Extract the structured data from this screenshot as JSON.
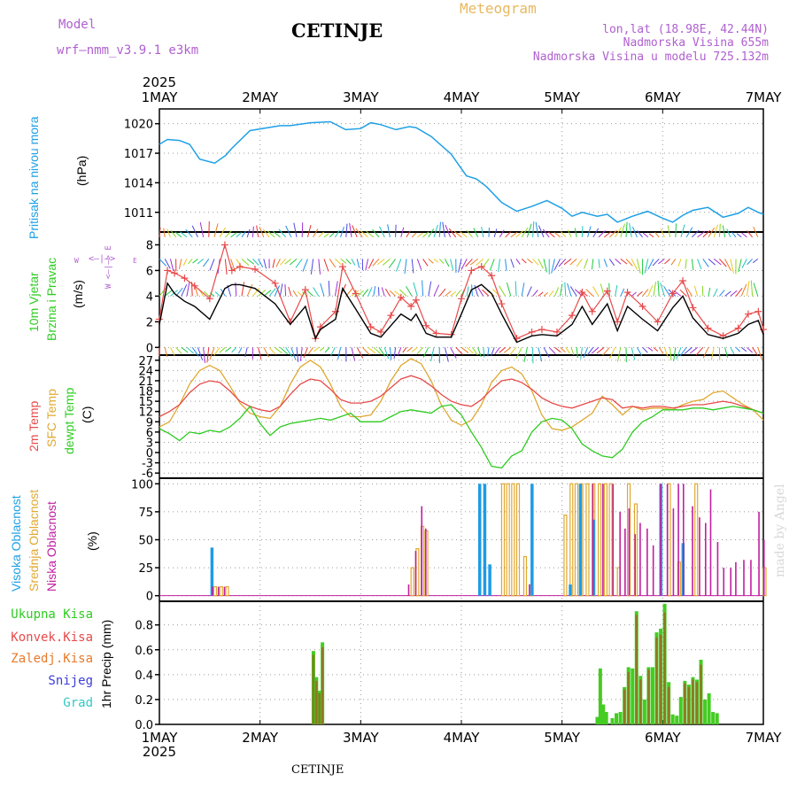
{
  "header": {
    "model_label": "Model",
    "model_name": "wrf—nmm_v3.9.1  e3km",
    "station": "CETINJE",
    "product": "Meteogram",
    "lonlat": "lon,lat (18.98E, 42.44N)",
    "elevation": "Nadmorska Visina 655m",
    "model_elevation": "Nadmorska Visina u modelu 725.132m",
    "watermark": "made by Angel",
    "footer_station": "CETINJE"
  },
  "colors": {
    "pressure": "#1ea0e6",
    "temp2m": "#e84a4a",
    "sfctemp": "#e0a830",
    "dewpt": "#2ecc20",
    "high_cloud": "#1e9be6",
    "mid_cloud": "#e0a830",
    "low_cloud": "#c020a0",
    "total_precip": "#44cc22",
    "conv_precip": "#e84a4a",
    "frozen_precip": "#e87a2a",
    "snow": "#3c3cd8",
    "hail": "#30c8c8",
    "model_text": "#b060d0",
    "meteogram_title": "#e8b860"
  },
  "panel_labels": {
    "pressure": [
      "Pritisak na nivou mora",
      "(hPa)"
    ],
    "wind": [
      "10m Vjetar",
      "Brzina i Pravac",
      "(m/s)"
    ],
    "compass": "W <—|—> E",
    "temp": [
      "2m Temp",
      "SFC Temp",
      "dewpt Temp",
      "(C)"
    ],
    "cloud": [
      "Visoka Oblacnost",
      "Srednja Oblacnost",
      "Niska Oblacnost",
      "(%)"
    ],
    "precip": [
      "Ukupna Kisa",
      "Konvek.Kisa",
      "Zaledj.Kisa",
      "Snijeg",
      "Grad",
      "1hr Precip (mm)"
    ]
  },
  "chart_data": {
    "type": "meteogram",
    "x_year": "2025",
    "x_ticks": [
      "1MAY",
      "2MAY",
      "3MAY",
      "4MAY",
      "5MAY",
      "6MAY",
      "7MAY"
    ],
    "x_range_days": [
      0,
      6
    ],
    "pressure": {
      "ylabel": "Pritisak na nivou mora (hPa)",
      "ticks": [
        1011,
        1014,
        1017,
        1020
      ],
      "ylim": [
        1009,
        1021.5
      ],
      "x": [
        0,
        0.08,
        0.2,
        0.3,
        0.4,
        0.55,
        0.66,
        0.72,
        0.9,
        1.2,
        1.3,
        1.5,
        1.7,
        1.85,
        2.0,
        2.1,
        2.2,
        2.35,
        2.48,
        2.55,
        2.7,
        2.9,
        3.05,
        3.15,
        3.25,
        3.4,
        3.55,
        3.7,
        3.85,
        4.0,
        4.1,
        4.2,
        4.35,
        4.45,
        4.55,
        4.7,
        4.85,
        5.0,
        5.1,
        5.2,
        5.3,
        5.45,
        5.6,
        5.75,
        5.85,
        5.95,
        6.0
      ],
      "values": [
        1017.9,
        1018.4,
        1018.3,
        1017.9,
        1016.4,
        1016.0,
        1016.8,
        1017.5,
        1019.3,
        1019.8,
        1019.8,
        1020.1,
        1020.2,
        1019.4,
        1019.5,
        1020.1,
        1019.9,
        1019.4,
        1019.7,
        1019.6,
        1018.7,
        1016.9,
        1014.7,
        1014.4,
        1013.6,
        1012.0,
        1011.1,
        1011.6,
        1012.2,
        1011.4,
        1010.6,
        1011.0,
        1010.6,
        1010.8,
        1010.0,
        1010.6,
        1011.1,
        1010.4,
        1010.0,
        1010.7,
        1011.2,
        1011.5,
        1010.5,
        1010.9,
        1011.5,
        1011.0,
        1010.8
      ]
    },
    "wind": {
      "ylabel": "10m Vjetar Brzina i Pravac (m/s)",
      "ticks": [
        0,
        2,
        4,
        6,
        8
      ],
      "ylim": [
        -0.6,
        9.0
      ],
      "speed_x": [
        0,
        0.08,
        0.15,
        0.25,
        0.35,
        0.5,
        0.65,
        0.72,
        0.8,
        0.95,
        1.15,
        1.3,
        1.45,
        1.55,
        1.6,
        1.75,
        1.82,
        1.95,
        2.1,
        2.2,
        2.3,
        2.4,
        2.5,
        2.55,
        2.65,
        2.75,
        2.9,
        3.0,
        3.1,
        3.2,
        3.3,
        3.4,
        3.55,
        3.7,
        3.8,
        3.95,
        4.1,
        4.2,
        4.3,
        4.45,
        4.55,
        4.65,
        4.8,
        4.95,
        5.1,
        5.2,
        5.3,
        5.45,
        5.6,
        5.75,
        5.85,
        5.95,
        6.0
      ],
      "speed_black": [
        1.8,
        5.0,
        4.2,
        3.6,
        3.2,
        2.2,
        4.6,
        4.9,
        4.9,
        4.6,
        3.4,
        1.8,
        3.2,
        0.7,
        1.4,
        2.2,
        4.6,
        3.0,
        1.1,
        0.8,
        1.7,
        2.6,
        2.1,
        2.6,
        1.1,
        0.8,
        0.8,
        2.6,
        4.5,
        4.9,
        4.2,
        2.6,
        0.4,
        0.9,
        1.0,
        0.9,
        1.8,
        3.2,
        1.8,
        3.4,
        1.3,
        3.2,
        2.2,
        1.3,
        3.1,
        4.0,
        2.3,
        1.0,
        0.7,
        1.1,
        1.8,
        2.1,
        1.0
      ],
      "gust_red": [
        2.2,
        6.0,
        5.8,
        5.4,
        4.8,
        3.8,
        8.0,
        6.0,
        6.3,
        6.1,
        5.0,
        2.0,
        4.5,
        0.7,
        1.6,
        2.8,
        6.3,
        4.2,
        1.6,
        1.2,
        2.5,
        3.9,
        3.2,
        3.7,
        1.7,
        1.1,
        1.0,
        3.8,
        6.0,
        6.3,
        5.6,
        3.4,
        0.7,
        1.2,
        1.4,
        1.2,
        2.5,
        4.3,
        2.8,
        4.4,
        2.0,
        4.3,
        3.2,
        2.0,
        4.2,
        5.2,
        3.1,
        1.5,
        0.9,
        1.5,
        2.6,
        2.8,
        1.4
      ]
    },
    "temperature": {
      "ylabel": "2m Temp / SFC Temp / dewpt Temp (C)",
      "ticks": [
        -6,
        -3,
        0,
        3,
        6,
        9,
        12,
        15,
        18,
        21,
        24,
        27
      ],
      "ylim": [
        -7.5,
        28.5
      ],
      "x": [
        0,
        0.1,
        0.2,
        0.3,
        0.4,
        0.5,
        0.6,
        0.7,
        0.8,
        0.9,
        1.0,
        1.1,
        1.2,
        1.3,
        1.4,
        1.5,
        1.6,
        1.7,
        1.8,
        1.9,
        2.0,
        2.1,
        2.2,
        2.3,
        2.4,
        2.5,
        2.6,
        2.7,
        2.8,
        2.9,
        3.0,
        3.1,
        3.2,
        3.3,
        3.4,
        3.5,
        3.6,
        3.7,
        3.8,
        3.9,
        4.0,
        4.1,
        4.2,
        4.3,
        4.4,
        4.5,
        4.6,
        4.7,
        4.8,
        4.9,
        5.0,
        5.1,
        5.2,
        5.3,
        5.4,
        5.5,
        5.6,
        5.7,
        5.8,
        5.9,
        6.0
      ],
      "t2m": [
        10.5,
        12.0,
        14.0,
        17.5,
        20.0,
        21.0,
        20.5,
        18.0,
        15.0,
        13.5,
        12.5,
        12.0,
        13.5,
        17.0,
        20.0,
        21.5,
        21.0,
        18.5,
        15.5,
        14.5,
        14.5,
        15.0,
        16.5,
        19.0,
        21.5,
        22.5,
        21.5,
        19.5,
        17.0,
        15.0,
        14.0,
        13.5,
        15.5,
        18.5,
        21.0,
        21.5,
        20.5,
        18.5,
        16.0,
        14.5,
        13.5,
        13.0,
        14.0,
        15.0,
        16.0,
        15.5,
        13.0,
        13.5,
        13.0,
        13.5,
        13.5,
        13.0,
        13.5,
        14.0,
        14.0,
        14.5,
        15.0,
        14.5,
        13.5,
        12.5,
        11.5
      ],
      "sfc": [
        7.5,
        9.0,
        14.0,
        20.0,
        24.0,
        25.5,
        24.0,
        19.5,
        14.5,
        11.5,
        10.5,
        10.0,
        13.5,
        20.0,
        25.0,
        27.0,
        25.0,
        20.0,
        13.5,
        10.5,
        10.5,
        11.0,
        15.0,
        21.0,
        25.5,
        27.5,
        26.0,
        21.0,
        14.0,
        9.5,
        8.0,
        9.5,
        14.0,
        20.5,
        24.0,
        25.0,
        23.0,
        18.0,
        11.0,
        7.0,
        6.5,
        7.5,
        9.5,
        11.5,
        16.5,
        14.0,
        11.0,
        13.5,
        12.5,
        13.0,
        13.0,
        12.5,
        14.0,
        15.0,
        15.5,
        17.5,
        18.0,
        16.0,
        14.0,
        12.5,
        9.5
      ],
      "dewpt": [
        7.0,
        5.5,
        3.5,
        6.0,
        5.5,
        6.5,
        6.0,
        7.5,
        10.0,
        13.5,
        8.5,
        5.0,
        7.5,
        8.5,
        9.0,
        9.5,
        10.0,
        9.5,
        10.5,
        11.5,
        9.0,
        9.0,
        9.0,
        10.5,
        12.0,
        12.5,
        12.0,
        11.5,
        13.5,
        14.0,
        11.0,
        6.0,
        1.5,
        -4.0,
        -4.5,
        -1.0,
        0.5,
        6.0,
        9.0,
        10.0,
        9.5,
        7.0,
        2.5,
        0.5,
        -1.0,
        -1.5,
        1.0,
        6.0,
        9.0,
        10.5,
        12.5,
        12.5,
        12.5,
        13.0,
        13.0,
        12.5,
        13.0,
        13.5,
        13.0,
        12.5,
        11.5
      ]
    },
    "cloud": {
      "ylabel": "Visoka / Srednja / Niska Oblacnost (%)",
      "ticks": [
        0,
        25,
        50,
        75,
        100
      ],
      "ylim": [
        -5,
        105
      ],
      "high": [
        [
          0.54,
          43
        ],
        [
          3.2,
          100
        ],
        [
          3.25,
          100
        ],
        [
          3.3,
          28
        ],
        [
          3.72,
          100
        ],
        [
          4.1,
          10
        ],
        [
          4.2,
          100
        ],
        [
          4.33,
          68
        ],
        [
          5.0,
          100
        ],
        [
          5.22,
          47
        ]
      ],
      "mid": [
        [
          0.54,
          8
        ],
        [
          0.6,
          8
        ],
        [
          0.66,
          8
        ],
        [
          2.5,
          25
        ],
        [
          2.55,
          42
        ],
        [
          2.6,
          62
        ],
        [
          2.64,
          58
        ],
        [
          3.4,
          100
        ],
        [
          3.45,
          100
        ],
        [
          3.5,
          100
        ],
        [
          3.55,
          100
        ],
        [
          3.62,
          35
        ],
        [
          3.68,
          10
        ],
        [
          4.02,
          72
        ],
        [
          4.08,
          100
        ],
        [
          4.13,
          100
        ],
        [
          4.18,
          100
        ],
        [
          4.24,
          100
        ],
        [
          4.3,
          100
        ],
        [
          4.36,
          100
        ],
        [
          4.42,
          100
        ],
        [
          4.47,
          100
        ],
        [
          4.55,
          25
        ],
        [
          4.65,
          100
        ],
        [
          4.72,
          82
        ],
        [
          5.05,
          100
        ],
        [
          5.15,
          30
        ],
        [
          5.32,
          100
        ],
        [
          6.0,
          25
        ]
      ],
      "low": [
        [
          0.5,
          8
        ],
        [
          0.56,
          8
        ],
        [
          0.62,
          8
        ],
        [
          2.45,
          10
        ],
        [
          2.52,
          40
        ],
        [
          2.58,
          80
        ],
        [
          2.62,
          60
        ],
        [
          3.65,
          10
        ],
        [
          4.28,
          100
        ],
        [
          4.38,
          100
        ],
        [
          4.48,
          100
        ],
        [
          4.55,
          75
        ],
        [
          4.6,
          60
        ],
        [
          4.64,
          78
        ],
        [
          4.7,
          55
        ],
        [
          4.75,
          65
        ],
        [
          4.82,
          60
        ],
        [
          4.88,
          45
        ],
        [
          4.95,
          100
        ],
        [
          5.02,
          100
        ],
        [
          5.08,
          78
        ],
        [
          5.13,
          100
        ],
        [
          5.18,
          100
        ],
        [
          5.27,
          80
        ],
        [
          5.34,
          70
        ],
        [
          5.4,
          65
        ],
        [
          5.45,
          95
        ],
        [
          5.52,
          48
        ],
        [
          5.58,
          25
        ],
        [
          5.65,
          25
        ],
        [
          5.7,
          30
        ],
        [
          5.78,
          32
        ],
        [
          5.85,
          32
        ],
        [
          5.93,
          75
        ],
        [
          5.98,
          50
        ]
      ]
    },
    "precip": {
      "ylabel": "1hr Precip (mm)",
      "ticks": [
        0.0,
        0.2,
        0.4,
        0.6,
        0.8
      ],
      "ylim": [
        0,
        0.99
      ],
      "total": [
        [
          1.53,
          0.59
        ],
        [
          1.56,
          0.38
        ],
        [
          1.59,
          0.27
        ],
        [
          1.62,
          0.66
        ],
        [
          4.35,
          0.06
        ],
        [
          4.38,
          0.45
        ],
        [
          4.41,
          0.16
        ],
        [
          4.44,
          0.1
        ],
        [
          4.5,
          0.05
        ],
        [
          4.54,
          0.09
        ],
        [
          4.58,
          0.1
        ],
        [
          4.62,
          0.3
        ],
        [
          4.66,
          0.46
        ],
        [
          4.7,
          0.45
        ],
        [
          4.74,
          0.91
        ],
        [
          4.78,
          0.39
        ],
        [
          4.82,
          0.2
        ],
        [
          4.86,
          0.46
        ],
        [
          4.9,
          0.46
        ],
        [
          4.94,
          0.74
        ],
        [
          4.98,
          0.77
        ],
        [
          5.02,
          0.97
        ],
        [
          5.06,
          0.34
        ],
        [
          5.1,
          0.08
        ],
        [
          5.14,
          0.07
        ],
        [
          5.18,
          0.22
        ],
        [
          5.22,
          0.35
        ],
        [
          5.26,
          0.32
        ],
        [
          5.3,
          0.38
        ],
        [
          5.34,
          0.36
        ],
        [
          5.38,
          0.52
        ],
        [
          5.42,
          0.2
        ],
        [
          5.46,
          0.25
        ],
        [
          5.5,
          0.1
        ],
        [
          5.54,
          0.09
        ]
      ],
      "convective": [
        [
          1.53,
          0.56
        ],
        [
          1.56,
          0.35
        ],
        [
          1.59,
          0.25
        ],
        [
          1.62,
          0.62
        ],
        [
          4.62,
          0.28
        ],
        [
          4.66,
          0.42
        ],
        [
          4.74,
          0.88
        ],
        [
          4.78,
          0.36
        ],
        [
          4.86,
          0.44
        ],
        [
          4.94,
          0.7
        ],
        [
          4.98,
          0.72
        ],
        [
          5.02,
          0.9
        ],
        [
          5.06,
          0.3
        ],
        [
          5.22,
          0.33
        ],
        [
          5.26,
          0.3
        ],
        [
          5.3,
          0.36
        ],
        [
          5.34,
          0.34
        ],
        [
          5.38,
          0.48
        ]
      ]
    }
  }
}
